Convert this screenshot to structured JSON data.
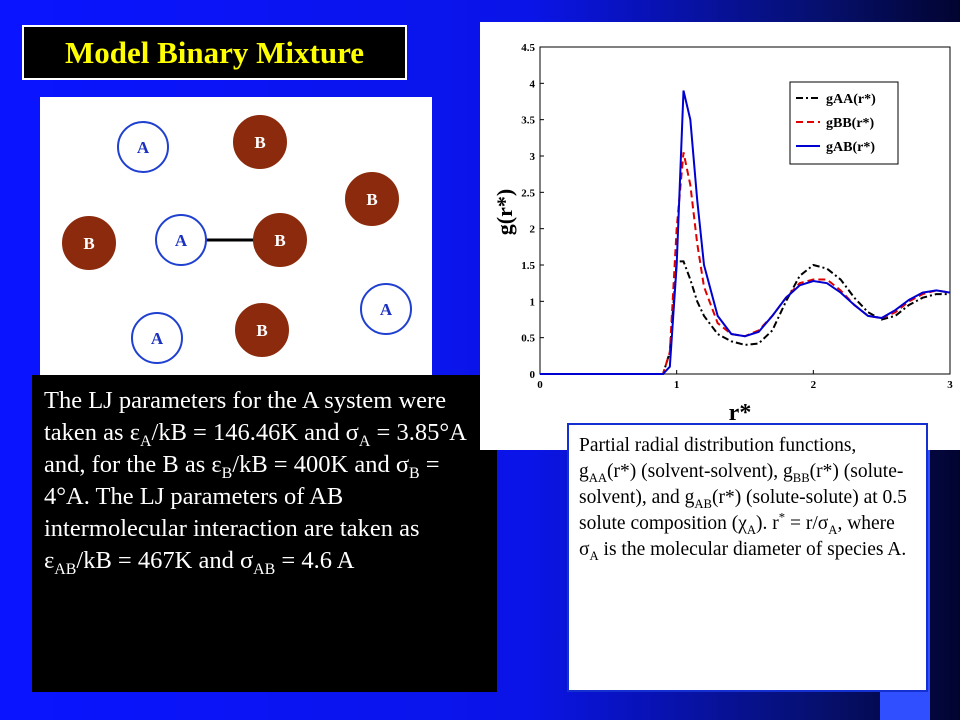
{
  "title": "Model Binary Mixture",
  "diagram": {
    "nodes": [
      {
        "label": "A"
      },
      {
        "label": "B"
      },
      {
        "label": "B"
      },
      {
        "label": "B"
      },
      {
        "label": "A"
      },
      {
        "label": "B"
      },
      {
        "label": "A"
      },
      {
        "label": "A"
      },
      {
        "label": "B"
      }
    ]
  },
  "text": {
    "runs": [
      {
        "text": "The LJ parameters for the A system were taken as ε"
      },
      {
        "text": "A",
        "sub": true
      },
      {
        "text": "/kB = 146.46K and σ"
      },
      {
        "text": "A",
        "sub": true
      },
      {
        "text": " = 3.85°A and, for the B as ε"
      },
      {
        "text": "B",
        "sub": true
      },
      {
        "text": "/kB = 400K and σ"
      },
      {
        "text": "B",
        "sub": true
      },
      {
        "text": " = 4°A. The LJ parameters of AB intermolecular interaction are taken as ε"
      },
      {
        "text": "AB",
        "sub": true
      },
      {
        "text": "/kB = 467K and σ"
      },
      {
        "text": "AB",
        "sub": true
      },
      {
        "text": " = 4.6 A"
      }
    ]
  },
  "caption": {
    "runs": [
      {
        "text": "Partial radial distribution functions, g"
      },
      {
        "text": "AA",
        "sub": true
      },
      {
        "text": "(r*) (solvent-solvent), g"
      },
      {
        "text": "BB",
        "sub": true
      },
      {
        "text": "(r*) (solute-solvent), and g"
      },
      {
        "text": "AB",
        "sub": true
      },
      {
        "text": "(r*) (solute-solute) at 0.5 solute composition (χ"
      },
      {
        "text": "A",
        "sub": true
      },
      {
        "text": "). r"
      },
      {
        "text": "*",
        "sup": true
      },
      {
        "text": " = r/σ"
      },
      {
        "text": "A",
        "sub": true
      },
      {
        "text": ", where σ"
      },
      {
        "text": "A",
        "sub": true
      },
      {
        "text": " is the molecular diameter of species A."
      }
    ]
  },
  "chart_data": {
    "type": "line",
    "xlabel": "r*",
    "ylabel": "g(r*)",
    "x": [
      0,
      0.8,
      0.9,
      0.95,
      1.0,
      1.05,
      1.1,
      1.15,
      1.2,
      1.3,
      1.4,
      1.5,
      1.6,
      1.7,
      1.8,
      1.9,
      2.0,
      2.1,
      2.2,
      2.3,
      2.4,
      2.5,
      2.6,
      2.7,
      2.8,
      2.9,
      3.0
    ],
    "series": [
      {
        "name": "gAA(r*)",
        "color": "#000000",
        "style": "dashdot",
        "values": [
          0,
          0,
          0,
          0.3,
          1.55,
          1.55,
          1.3,
          1.0,
          0.8,
          0.55,
          0.45,
          0.4,
          0.42,
          0.6,
          1.0,
          1.35,
          1.5,
          1.45,
          1.3,
          1.05,
          0.85,
          0.75,
          0.8,
          0.95,
          1.05,
          1.1,
          1.1
        ]
      },
      {
        "name": "gBB(r*)",
        "color": "#e00000",
        "style": "dashed",
        "values": [
          0,
          0,
          0,
          0.3,
          2.0,
          3.05,
          2.6,
          1.8,
          1.2,
          0.7,
          0.55,
          0.52,
          0.6,
          0.8,
          1.05,
          1.25,
          1.3,
          1.3,
          1.15,
          0.95,
          0.8,
          0.77,
          0.85,
          1.0,
          1.1,
          1.15,
          1.12
        ]
      },
      {
        "name": "gAB(r*)",
        "color": "#0000d0",
        "style": "solid",
        "values": [
          0,
          0,
          0,
          0.1,
          1.5,
          3.9,
          3.5,
          2.4,
          1.5,
          0.8,
          0.55,
          0.52,
          0.58,
          0.8,
          1.05,
          1.22,
          1.28,
          1.25,
          1.12,
          0.95,
          0.8,
          0.77,
          0.88,
          1.02,
          1.12,
          1.15,
          1.12
        ]
      }
    ],
    "xlim": [
      0,
      3
    ],
    "xticks": [
      0,
      1,
      2,
      3
    ],
    "ylim": [
      0,
      4.5
    ],
    "yticks": [
      0,
      0.5,
      1,
      1.5,
      2,
      2.5,
      3,
      3.5,
      4,
      4.5
    ],
    "legend": "upper right"
  }
}
